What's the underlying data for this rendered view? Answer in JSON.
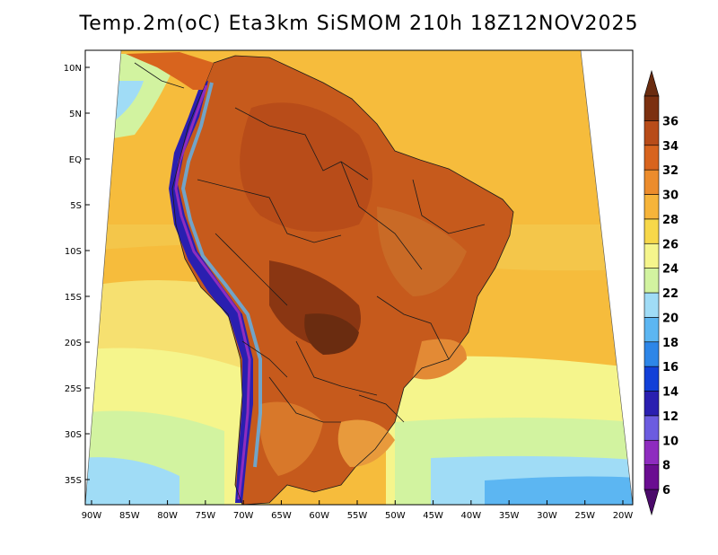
{
  "title": "Temp.2m(oC) Eta3km SiSMOM 210h 18Z12NOV2025",
  "map": {
    "region": "South America",
    "variable": "2 m air temperature",
    "units": "oC",
    "lat_ticks": [
      "10N",
      "5N",
      "EQ",
      "5S",
      "10S",
      "15S",
      "20S",
      "25S",
      "30S",
      "35S"
    ],
    "lat_values": [
      10,
      5,
      0,
      -5,
      -10,
      -15,
      -20,
      -25,
      -30,
      -35
    ],
    "lon_ticks": [
      "90W",
      "85W",
      "80W",
      "75W",
      "70W",
      "65W",
      "60W",
      "55W",
      "50W",
      "45W",
      "40W",
      "35W",
      "30W",
      "25W",
      "20W"
    ],
    "lon_values": [
      -90,
      -85,
      -80,
      -75,
      -70,
      -65,
      -60,
      -55,
      -50,
      -45,
      -40,
      -35,
      -30,
      -25,
      -20
    ],
    "lon_range": [
      -90,
      -20
    ],
    "lat_range": [
      -38,
      12
    ]
  },
  "colorbar": {
    "labels": [
      "6",
      "8",
      "10",
      "12",
      "14",
      "16",
      "18",
      "20",
      "22",
      "24",
      "26",
      "28",
      "30",
      "32",
      "34",
      "36"
    ],
    "colors": [
      "#6a0d91",
      "#8e2cbf",
      "#6c5ce0",
      "#2a1fb0",
      "#1240d8",
      "#2d86e8",
      "#5cb6f2",
      "#a0dcf6",
      "#d2f3a0",
      "#f5f58c",
      "#f7d84a",
      "#f6b43a",
      "#ec8c2c",
      "#d8641e",
      "#b84c19",
      "#7c3010"
    ],
    "under_color": "#4b0a6a",
    "over_color": "#6a2c10"
  }
}
